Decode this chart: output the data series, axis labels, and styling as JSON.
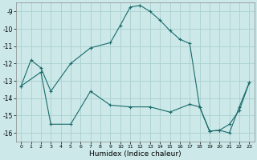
{
  "xlabel": "Humidex (Indice chaleur)",
  "bg_color": "#cce8e8",
  "grid_color": "#aacfcf",
  "line_color": "#1a6b6b",
  "line1_x": [
    0,
    1,
    2,
    3,
    5,
    7,
    9,
    10,
    11,
    12,
    13,
    14,
    15,
    16,
    17,
    18,
    19,
    20,
    21,
    22,
    23
  ],
  "line1_y": [
    -13.3,
    -11.8,
    -12.25,
    -13.6,
    -12.0,
    -11.1,
    -10.8,
    -9.8,
    -8.75,
    -8.65,
    -9.0,
    -9.5,
    -10.1,
    -10.6,
    -10.85,
    -14.5,
    -15.9,
    -15.85,
    -16.0,
    -14.5,
    -13.1
  ],
  "line2_x": [
    0,
    2,
    3,
    5,
    7,
    9,
    11,
    13,
    15,
    17,
    18,
    19,
    20,
    21,
    22,
    23
  ],
  "line2_y": [
    -13.3,
    -12.5,
    -15.5,
    -15.5,
    -13.6,
    -14.4,
    -14.5,
    -14.5,
    -14.8,
    -14.35,
    -14.5,
    -15.9,
    -15.85,
    -15.5,
    -14.7,
    -13.1
  ],
  "xlim": [
    -0.5,
    23.5
  ],
  "ylim": [
    -16.5,
    -8.5
  ],
  "yticks": [
    -9,
    -10,
    -11,
    -12,
    -13,
    -14,
    -15,
    -16
  ],
  "xticks": [
    0,
    1,
    2,
    3,
    4,
    5,
    6,
    7,
    8,
    9,
    10,
    11,
    12,
    13,
    14,
    15,
    16,
    17,
    18,
    19,
    20,
    21,
    22,
    23
  ],
  "marker": "+"
}
